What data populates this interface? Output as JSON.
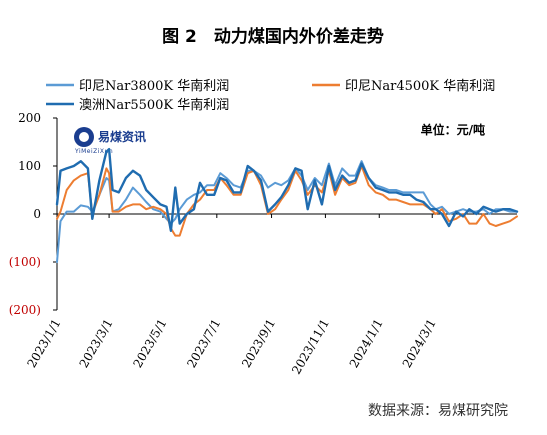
{
  "chart_data": {
    "type": "line",
    "title": "图 2　动力煤国内外价差走势",
    "unit_label": "单位：元/吨",
    "source": "数据来源：易煤研究院",
    "logo": {
      "name": "易煤资讯",
      "sub": "YiMeiZiXun"
    },
    "ylim": [
      -200,
      200
    ],
    "yticks": [
      "200",
      "100",
      "0",
      "(100)",
      "(200)"
    ],
    "ytick_values": [
      200,
      100,
      0,
      -100,
      -200
    ],
    "xlim": [
      "2023-01-01",
      "2024-06-05"
    ],
    "xticks": [
      "2023/1/1",
      "2023/3/1",
      "2023/5/1",
      "2023/7/1",
      "2023/9/1",
      "2023/11/1",
      "2024/1/1",
      "2024/3/1"
    ],
    "xtick_dates": [
      "2023-01-01",
      "2023-03-01",
      "2023-05-01",
      "2023-07-01",
      "2023-09-01",
      "2023-11-01",
      "2024-01-01",
      "2024-03-01"
    ],
    "grid": false,
    "legend_placement": "top",
    "series": [
      {
        "name": "印尼Nar3800K 华南利润",
        "color": "#5b9bd5",
        "points": [
          [
            "2023-01-01",
            -100
          ],
          [
            "2023-01-05",
            -15
          ],
          [
            "2023-01-12",
            5
          ],
          [
            "2023-01-20",
            5
          ],
          [
            "2023-01-28",
            18
          ],
          [
            "2023-02-05",
            15
          ],
          [
            "2023-02-10",
            5
          ],
          [
            "2023-02-18",
            40
          ],
          [
            "2023-02-26",
            75
          ],
          [
            "2023-03-01",
            70
          ],
          [
            "2023-03-05",
            5
          ],
          [
            "2023-03-12",
            10
          ],
          [
            "2023-03-20",
            30
          ],
          [
            "2023-03-28",
            55
          ],
          [
            "2023-04-05",
            40
          ],
          [
            "2023-04-12",
            25
          ],
          [
            "2023-04-20",
            10
          ],
          [
            "2023-04-28",
            5
          ],
          [
            "2023-05-05",
            -10
          ],
          [
            "2023-05-10",
            -20
          ],
          [
            "2023-05-15",
            -10
          ],
          [
            "2023-05-20",
            10
          ],
          [
            "2023-05-28",
            30
          ],
          [
            "2023-06-05",
            40
          ],
          [
            "2023-06-12",
            45
          ],
          [
            "2023-06-20",
            60
          ],
          [
            "2023-06-28",
            60
          ],
          [
            "2023-07-05",
            85
          ],
          [
            "2023-07-12",
            75
          ],
          [
            "2023-07-20",
            60
          ],
          [
            "2023-07-28",
            55
          ],
          [
            "2023-08-05",
            90
          ],
          [
            "2023-08-12",
            90
          ],
          [
            "2023-08-20",
            80
          ],
          [
            "2023-08-28",
            55
          ],
          [
            "2023-09-05",
            65
          ],
          [
            "2023-09-12",
            60
          ],
          [
            "2023-09-20",
            70
          ],
          [
            "2023-09-28",
            95
          ],
          [
            "2023-10-05",
            80
          ],
          [
            "2023-10-12",
            50
          ],
          [
            "2023-10-20",
            75
          ],
          [
            "2023-10-28",
            60
          ],
          [
            "2023-11-05",
            105
          ],
          [
            "2023-11-12",
            60
          ],
          [
            "2023-11-20",
            95
          ],
          [
            "2023-11-28",
            80
          ],
          [
            "2023-12-05",
            80
          ],
          [
            "2023-12-12",
            110
          ],
          [
            "2023-12-20",
            75
          ],
          [
            "2023-12-28",
            60
          ],
          [
            "2024-01-05",
            55
          ],
          [
            "2024-01-12",
            50
          ],
          [
            "2024-01-20",
            50
          ],
          [
            "2024-01-28",
            45
          ],
          [
            "2024-02-05",
            45
          ],
          [
            "2024-02-12",
            45
          ],
          [
            "2024-02-20",
            45
          ],
          [
            "2024-02-28",
            20
          ],
          [
            "2024-03-05",
            10
          ],
          [
            "2024-03-12",
            15
          ],
          [
            "2024-03-20",
            0
          ],
          [
            "2024-03-28",
            5
          ],
          [
            "2024-04-05",
            10
          ],
          [
            "2024-04-12",
            5
          ],
          [
            "2024-04-20",
            5
          ],
          [
            "2024-04-28",
            10
          ],
          [
            "2024-05-05",
            0
          ],
          [
            "2024-05-12",
            10
          ],
          [
            "2024-05-20",
            10
          ],
          [
            "2024-05-28",
            5
          ],
          [
            "2024-06-05",
            5
          ]
        ]
      },
      {
        "name": "印尼Nar4500K 华南利润",
        "color": "#ed7d31",
        "points": [
          [
            "2023-01-01",
            -10
          ],
          [
            "2023-01-05",
            5
          ],
          [
            "2023-01-12",
            50
          ],
          [
            "2023-01-20",
            70
          ],
          [
            "2023-01-28",
            80
          ],
          [
            "2023-02-05",
            85
          ],
          [
            "2023-02-10",
            0
          ],
          [
            "2023-02-18",
            40
          ],
          [
            "2023-02-26",
            95
          ],
          [
            "2023-03-01",
            85
          ],
          [
            "2023-03-05",
            5
          ],
          [
            "2023-03-12",
            5
          ],
          [
            "2023-03-20",
            15
          ],
          [
            "2023-03-28",
            20
          ],
          [
            "2023-04-05",
            20
          ],
          [
            "2023-04-12",
            10
          ],
          [
            "2023-04-20",
            15
          ],
          [
            "2023-04-28",
            10
          ],
          [
            "2023-05-05",
            0
          ],
          [
            "2023-05-10",
            -30
          ],
          [
            "2023-05-15",
            -45
          ],
          [
            "2023-05-20",
            -45
          ],
          [
            "2023-05-28",
            0
          ],
          [
            "2023-06-05",
            20
          ],
          [
            "2023-06-12",
            30
          ],
          [
            "2023-06-20",
            50
          ],
          [
            "2023-06-28",
            50
          ],
          [
            "2023-07-05",
            75
          ],
          [
            "2023-07-12",
            60
          ],
          [
            "2023-07-20",
            40
          ],
          [
            "2023-07-28",
            40
          ],
          [
            "2023-08-05",
            85
          ],
          [
            "2023-08-12",
            90
          ],
          [
            "2023-08-20",
            60
          ],
          [
            "2023-08-28",
            0
          ],
          [
            "2023-09-05",
            10
          ],
          [
            "2023-09-12",
            30
          ],
          [
            "2023-09-20",
            50
          ],
          [
            "2023-09-28",
            90
          ],
          [
            "2023-10-05",
            70
          ],
          [
            "2023-10-12",
            40
          ],
          [
            "2023-10-20",
            60
          ],
          [
            "2023-10-28",
            45
          ],
          [
            "2023-11-05",
            90
          ],
          [
            "2023-11-12",
            40
          ],
          [
            "2023-11-20",
            75
          ],
          [
            "2023-11-28",
            60
          ],
          [
            "2023-12-05",
            65
          ],
          [
            "2023-12-12",
            100
          ],
          [
            "2023-12-20",
            60
          ],
          [
            "2023-12-28",
            45
          ],
          [
            "2024-01-05",
            40
          ],
          [
            "2024-01-12",
            30
          ],
          [
            "2024-01-20",
            30
          ],
          [
            "2024-01-28",
            25
          ],
          [
            "2024-02-05",
            20
          ],
          [
            "2024-02-12",
            20
          ],
          [
            "2024-02-20",
            20
          ],
          [
            "2024-02-28",
            10
          ],
          [
            "2024-03-05",
            0
          ],
          [
            "2024-03-12",
            10
          ],
          [
            "2024-03-20",
            -15
          ],
          [
            "2024-03-28",
            -10
          ],
          [
            "2024-04-05",
            0
          ],
          [
            "2024-04-12",
            -20
          ],
          [
            "2024-04-20",
            -20
          ],
          [
            "2024-04-28",
            0
          ],
          [
            "2024-05-05",
            -20
          ],
          [
            "2024-05-12",
            -25
          ],
          [
            "2024-05-20",
            -20
          ],
          [
            "2024-05-28",
            -15
          ],
          [
            "2024-06-05",
            -5
          ]
        ]
      },
      {
        "name": "澳洲Nar5500K 华南利润",
        "color": "#1f6cb0",
        "points": [
          [
            "2023-01-01",
            20
          ],
          [
            "2023-01-05",
            90
          ],
          [
            "2023-01-12",
            95
          ],
          [
            "2023-01-20",
            100
          ],
          [
            "2023-01-28",
            110
          ],
          [
            "2023-02-05",
            95
          ],
          [
            "2023-02-10",
            -10
          ],
          [
            "2023-02-18",
            70
          ],
          [
            "2023-02-26",
            130
          ],
          [
            "2023-03-01",
            135
          ],
          [
            "2023-03-05",
            50
          ],
          [
            "2023-03-12",
            45
          ],
          [
            "2023-03-20",
            75
          ],
          [
            "2023-03-28",
            90
          ],
          [
            "2023-04-05",
            80
          ],
          [
            "2023-04-12",
            50
          ],
          [
            "2023-04-20",
            35
          ],
          [
            "2023-04-28",
            20
          ],
          [
            "2023-05-05",
            15
          ],
          [
            "2023-05-10",
            -35
          ],
          [
            "2023-05-15",
            55
          ],
          [
            "2023-05-20",
            -20
          ],
          [
            "2023-05-28",
            0
          ],
          [
            "2023-06-05",
            10
          ],
          [
            "2023-06-12",
            65
          ],
          [
            "2023-06-20",
            40
          ],
          [
            "2023-06-28",
            40
          ],
          [
            "2023-07-05",
            75
          ],
          [
            "2023-07-12",
            70
          ],
          [
            "2023-07-20",
            45
          ],
          [
            "2023-07-28",
            45
          ],
          [
            "2023-08-05",
            100
          ],
          [
            "2023-08-12",
            90
          ],
          [
            "2023-08-20",
            70
          ],
          [
            "2023-08-28",
            5
          ],
          [
            "2023-09-05",
            20
          ],
          [
            "2023-09-12",
            35
          ],
          [
            "2023-09-20",
            60
          ],
          [
            "2023-09-28",
            95
          ],
          [
            "2023-10-05",
            90
          ],
          [
            "2023-10-12",
            10
          ],
          [
            "2023-10-20",
            70
          ],
          [
            "2023-10-28",
            20
          ],
          [
            "2023-11-05",
            100
          ],
          [
            "2023-11-12",
            50
          ],
          [
            "2023-11-20",
            80
          ],
          [
            "2023-11-28",
            65
          ],
          [
            "2023-12-05",
            70
          ],
          [
            "2023-12-12",
            105
          ],
          [
            "2023-12-20",
            75
          ],
          [
            "2023-12-28",
            55
          ],
          [
            "2024-01-05",
            50
          ],
          [
            "2024-01-12",
            45
          ],
          [
            "2024-01-20",
            45
          ],
          [
            "2024-01-28",
            40
          ],
          [
            "2024-02-05",
            40
          ],
          [
            "2024-02-12",
            30
          ],
          [
            "2024-02-20",
            25
          ],
          [
            "2024-02-28",
            10
          ],
          [
            "2024-03-05",
            10
          ],
          [
            "2024-03-12",
            0
          ],
          [
            "2024-03-20",
            -25
          ],
          [
            "2024-03-28",
            5
          ],
          [
            "2024-04-05",
            -5
          ],
          [
            "2024-04-12",
            10
          ],
          [
            "2024-04-20",
            0
          ],
          [
            "2024-04-28",
            15
          ],
          [
            "2024-05-05",
            10
          ],
          [
            "2024-05-12",
            5
          ],
          [
            "2024-05-20",
            10
          ],
          [
            "2024-05-28",
            10
          ],
          [
            "2024-06-05",
            5
          ]
        ]
      }
    ]
  }
}
